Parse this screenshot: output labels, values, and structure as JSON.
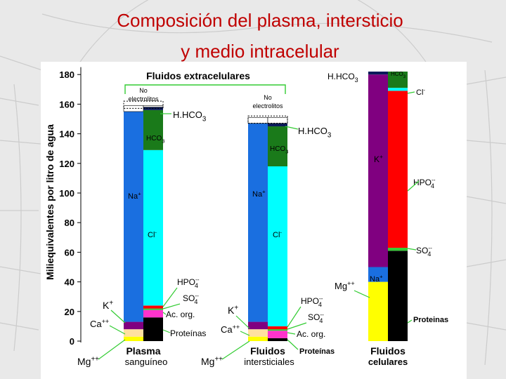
{
  "title": {
    "line1": "Composición del plasma, intersticio",
    "line2": "y medio intracelular"
  },
  "colors": {
    "title": "#c00000",
    "Na+": "#1a6fe0",
    "Cl-": "#00ffff",
    "HCO3": "#1a7a1a",
    "K+": "#800080",
    "HPO4": "#ff0000",
    "SO4": "#33cc33",
    "Ac. org.": "#ff33cc",
    "Proteínas": "#000000",
    "Mg++": "#ffff00",
    "Ca++": "#ffe0a0",
    "No electrolitos": "#ffffff"
  },
  "chart_data": {
    "type": "bar",
    "stacked": true,
    "ylabel": "Miliequivalentes por litro de agua",
    "ylim": [
      0,
      185
    ],
    "yticks": [
      0,
      20,
      40,
      60,
      80,
      100,
      120,
      140,
      160,
      180
    ],
    "bracket_label": "Fluidos extracelulares",
    "categories": [
      {
        "line1": "Plasma",
        "line2": "sanguíneo"
      },
      {
        "line1": "Fluidos",
        "line2": "intersticiales"
      },
      {
        "line1": "Fluidos",
        "line2": "celulares"
      }
    ],
    "columns": [
      {
        "category": "Plasma sanguíneo",
        "cations": [
          {
            "ion": "Mg++",
            "from": 0,
            "to": 3
          },
          {
            "ion": "Ca++",
            "from": 3,
            "to": 8
          },
          {
            "ion": "K+",
            "from": 8,
            "to": 13
          },
          {
            "ion": "Na+",
            "from": 13,
            "to": 155
          },
          {
            "ion": "No electrolitos",
            "from": 155,
            "to": 159
          }
        ],
        "anions": [
          {
            "ion": "Proteínas",
            "from": 0,
            "to": 16
          },
          {
            "ion": "Ac. org.",
            "from": 16,
            "to": 21
          },
          {
            "ion": "SO4",
            "from": 21,
            "to": 22
          },
          {
            "ion": "HPO4",
            "from": 22,
            "to": 24
          },
          {
            "ion": "Cl-",
            "from": 24,
            "to": 129
          },
          {
            "ion": "HCO3",
            "from": 129,
            "to": 156
          },
          {
            "ion": "H.HCO3",
            "from": 156,
            "to": 158
          },
          {
            "ion": "No electrolitos",
            "from": 158,
            "to": 159
          }
        ]
      },
      {
        "category": "Fluidos intersticiales",
        "cations": [
          {
            "ion": "Mg++",
            "from": 0,
            "to": 3
          },
          {
            "ion": "Ca++",
            "from": 3,
            "to": 8
          },
          {
            "ion": "K+",
            "from": 8,
            "to": 13
          },
          {
            "ion": "Na+",
            "from": 13,
            "to": 147
          },
          {
            "ion": "No electrolitos",
            "from": 147,
            "to": 151
          }
        ],
        "anions": [
          {
            "ion": "Proteínas",
            "from": 0,
            "to": 2
          },
          {
            "ion": "Ac. org.",
            "from": 2,
            "to": 7
          },
          {
            "ion": "SO4",
            "from": 7,
            "to": 8
          },
          {
            "ion": "HPO4",
            "from": 8,
            "to": 10
          },
          {
            "ion": "Cl-",
            "from": 10,
            "to": 118
          },
          {
            "ion": "HCO3",
            "from": 118,
            "to": 145
          },
          {
            "ion": "H.HCO3",
            "from": 145,
            "to": 147
          },
          {
            "ion": "No electrolitos",
            "from": 147,
            "to": 151
          }
        ]
      },
      {
        "category": "Fluidos celulares",
        "cations": [
          {
            "ion": "Mg++",
            "from": 0,
            "to": 40
          },
          {
            "ion": "Na+",
            "from": 40,
            "to": 50
          },
          {
            "ion": "K+",
            "from": 50,
            "to": 180
          },
          {
            "ion": "H.HCO3",
            "from": 180,
            "to": 182
          }
        ],
        "anions": [
          {
            "ion": "Proteínas",
            "from": 0,
            "to": 61
          },
          {
            "ion": "SO4",
            "from": 61,
            "to": 63
          },
          {
            "ion": "HPO4",
            "from": 63,
            "to": 169
          },
          {
            "ion": "Cl-",
            "from": 169,
            "to": 171
          },
          {
            "ion": "HCO3",
            "from": 171,
            "to": 182
          }
        ]
      }
    ],
    "annotations": {
      "no_electrolitos": [
        "No",
        "electrolitos"
      ],
      "no_electrolitos_2": [
        "No",
        "electrolitos"
      ],
      "h_hco3": "H.HCO",
      "h_hco3_sub": "3",
      "hco3": "HCO",
      "hco3_sub": "3",
      "na": "Na",
      "na_sup": "+",
      "cl": "Cl",
      "cl_sup": "-",
      "k": "K",
      "k_sup": "+",
      "ca": "Ca",
      "ca_sup": "++",
      "mg": "Mg",
      "mg_sup": "++",
      "hpo4": "HPO",
      "hpo4_sub": "4",
      "hpo4_sup": "--",
      "so4": "SO",
      "so4_sub": "4",
      "so4_sup": "--",
      "ac_org": "Ac. org.",
      "proteinas": "Proteínas",
      "proteinas_cell": "Proteinas"
    }
  }
}
